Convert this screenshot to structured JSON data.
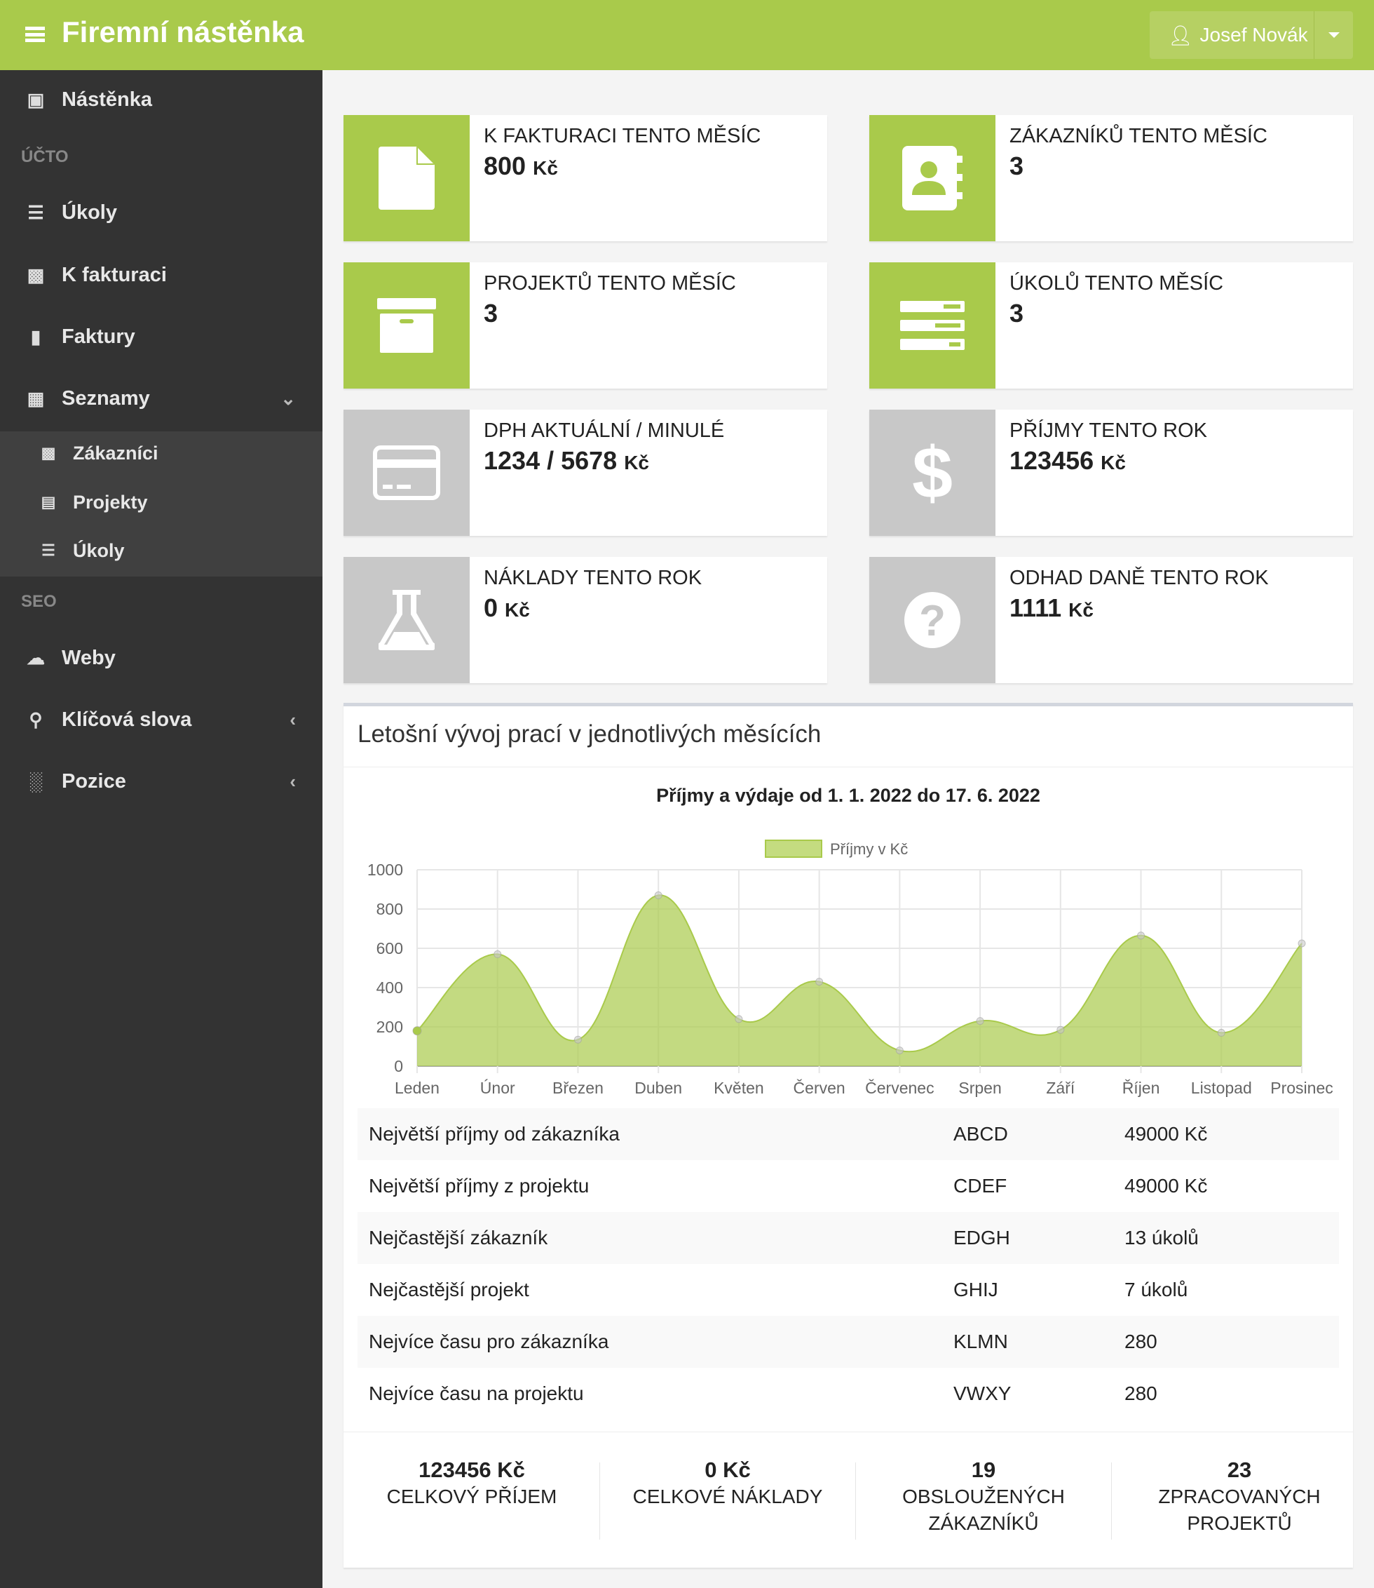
{
  "header": {
    "title": "Firemní nástěnka",
    "user": "Josef Novák"
  },
  "sidebar": {
    "items": [
      {
        "label": "Nástěnka",
        "icon": "slideshare-icon"
      },
      {
        "section": "ÚČTO"
      },
      {
        "label": "Úkoly",
        "icon": "tasks-icon"
      },
      {
        "label": "K fakturaci",
        "icon": "contact-icon"
      },
      {
        "label": "Faktury",
        "icon": "file-icon"
      },
      {
        "label": "Seznamy",
        "icon": "list-card-icon"
      },
      {
        "label": "Zákazníci",
        "icon": "contact-icon"
      },
      {
        "label": "Projekty",
        "icon": "archive-icon"
      },
      {
        "label": "Úkoly",
        "icon": "tasks-icon"
      },
      {
        "section": "SEO"
      },
      {
        "label": "Weby",
        "icon": "cloud-icon"
      },
      {
        "label": "Klíčová slova",
        "icon": "key-icon"
      },
      {
        "label": "Pozice",
        "icon": "bar-chart-icon"
      }
    ]
  },
  "boxes": [
    {
      "label": "K FAKTURACI TENTO MĚSÍC",
      "value": "800",
      "unit": "Kč",
      "icon": "file-icon",
      "color": "#a9ca4b"
    },
    {
      "label": "ZÁKAZNÍKŮ TENTO MĚSÍC",
      "value": "3",
      "unit": "",
      "icon": "address-book-icon",
      "color": "#a9ca4b"
    },
    {
      "label": "PROJEKTŮ TENTO MĚSÍC",
      "value": "3",
      "unit": "",
      "icon": "archive-icon",
      "color": "#a9ca4b"
    },
    {
      "label": "ÚKOLŮ TENTO MĚSÍC",
      "value": "3",
      "unit": "",
      "icon": "tasks-icon",
      "color": "#a9ca4b"
    },
    {
      "label": "DPH AKTUÁLNÍ / MINULÉ",
      "value": "1234 / 5678",
      "unit": "Kč",
      "icon": "credit-card-icon",
      "color": "#c8c8c8"
    },
    {
      "label": "PŘÍJMY TENTO ROK",
      "value": "123456",
      "unit": "Kč",
      "icon": "dollar-icon",
      "color": "#c8c8c8"
    },
    {
      "label": "NÁKLADY TENTO ROK",
      "value": "0",
      "unit": "Kč",
      "icon": "flask-icon",
      "color": "#c8c8c8"
    },
    {
      "label": "ODHAD DANĚ TENTO ROK",
      "value": "1111",
      "unit": "Kč",
      "icon": "question-icon",
      "color": "#c8c8c8"
    }
  ],
  "panel": {
    "title": "Letošní vývoj prací v jednotlivých měsících"
  },
  "chart_data": {
    "type": "area",
    "title": "Příjmy a výdaje od 1. 1. 2022 do 17. 6. 2022",
    "categories": [
      "Leden",
      "Únor",
      "Březen",
      "Duben",
      "Květen",
      "Červen",
      "Červenec",
      "Srpen",
      "Září",
      "Říjen",
      "Listopad",
      "Prosinec"
    ],
    "series": [
      {
        "name": "Příjmy v Kč",
        "values": [
          180,
          570,
          135,
          870,
          240,
          430,
          80,
          230,
          185,
          665,
          170,
          625
        ],
        "color": "#a9ca4b"
      }
    ],
    "yticks": [
      0,
      200,
      400,
      600,
      800,
      1000
    ],
    "ylim": [
      0,
      1000
    ],
    "grid": true,
    "legend": "top"
  },
  "table": [
    [
      "Největší příjmy od zákazníka",
      "ABCD",
      "49000 Kč"
    ],
    [
      "Největší příjmy z projektu",
      "CDEF",
      "49000 Kč"
    ],
    [
      "Nejčastější zákazník",
      "EDGH",
      "13 úkolů"
    ],
    [
      "Nejčastější projekt",
      "GHIJ",
      "7 úkolů"
    ],
    [
      "Nejvíce času pro zákazníka",
      "KLMN",
      "280"
    ],
    [
      "Nejvíce času na projektu",
      "VWXY",
      "280"
    ]
  ],
  "stats": [
    {
      "value": "123456 Kč",
      "label": "CELKOVÝ PŘÍJEM"
    },
    {
      "value": "0 Kč",
      "label": "CELKOVÉ NÁKLADY"
    },
    {
      "value": "19",
      "label": "OBSLOUŽENÝCH ZÁKAZNÍKŮ"
    },
    {
      "value": "23",
      "label": "ZPRACOVANÝCH PROJEKTŮ"
    }
  ]
}
